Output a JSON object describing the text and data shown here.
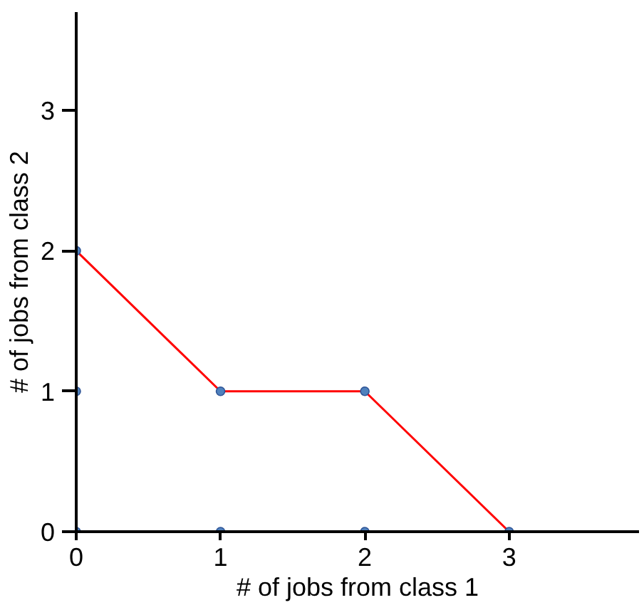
{
  "chart_data": {
    "type": "line",
    "xlabel": "# of jobs from class 1",
    "ylabel": "# of jobs from class 2",
    "xlim": [
      0,
      3.9
    ],
    "ylim": [
      0,
      3.7
    ],
    "xticks": [
      0,
      1,
      2,
      3
    ],
    "yticks": [
      0,
      1,
      2,
      3
    ],
    "grid": false,
    "series": [
      {
        "color": "#ff0000",
        "x": [
          0,
          1,
          2,
          3
        ],
        "values": [
          2,
          1,
          1,
          0
        ],
        "marker": "none"
      },
      {
        "type": "scatter",
        "color": "#4f81bd",
        "x": [
          0,
          1,
          2,
          3,
          0,
          0,
          1,
          2
        ],
        "values": [
          0,
          0,
          0,
          0,
          1,
          2,
          1,
          1
        ],
        "marker": "circle"
      }
    ]
  }
}
